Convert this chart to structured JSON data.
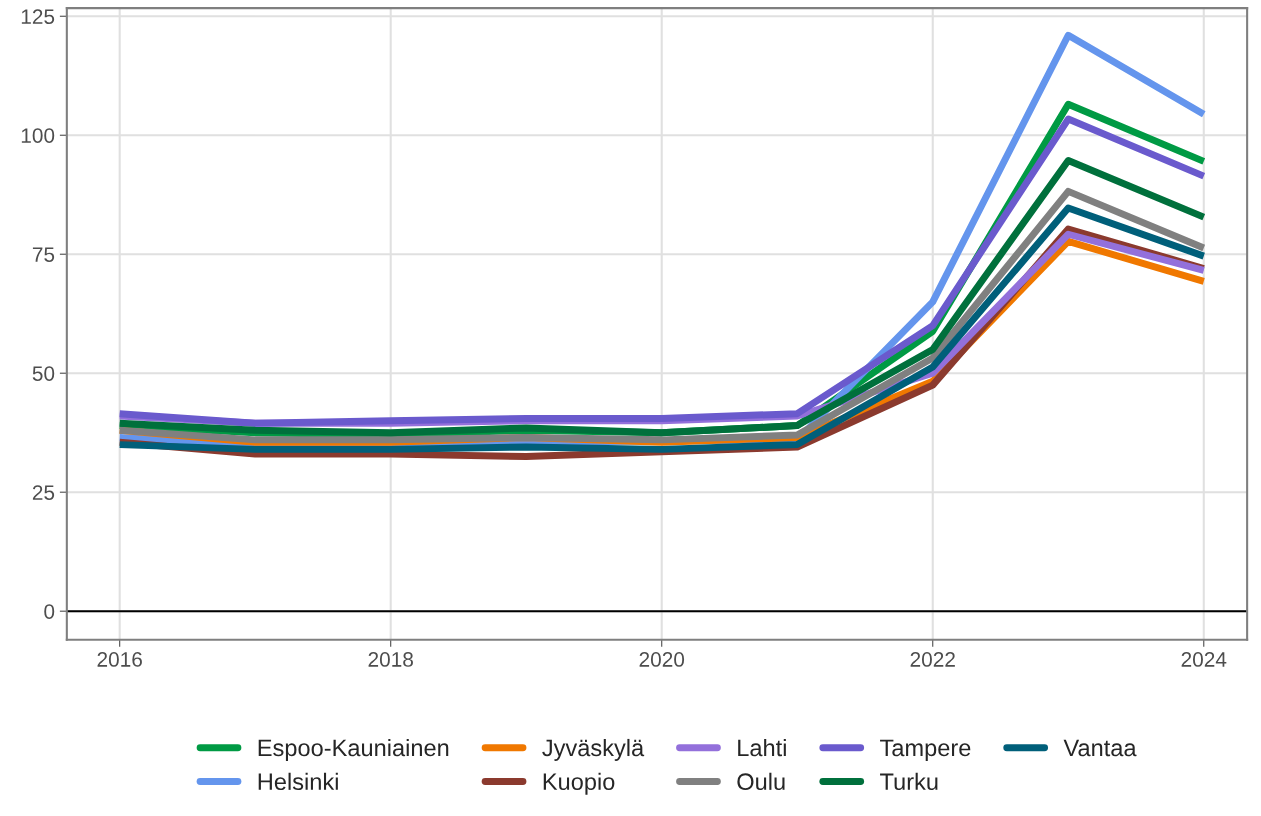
{
  "chart_data": {
    "type": "line",
    "x": [
      2016,
      2017,
      2018,
      2019,
      2020,
      2021,
      2022,
      2023,
      2024
    ],
    "series": [
      {
        "name": "Espoo-Kauniainen",
        "color": "#009a44",
        "values": [
          39,
          37.5,
          37,
          38,
          37.5,
          39,
          58.8,
          106.5,
          94.5
        ]
      },
      {
        "name": "Helsinki",
        "color": "#6495ed",
        "values": [
          36.5,
          35,
          null,
          35.5,
          null,
          36,
          65,
          121,
          104.4
        ]
      },
      {
        "name": "Jyväskylä",
        "color": "#f07800",
        "values": [
          38,
          35.5,
          35.5,
          36.5,
          35.5,
          36.5,
          48.3,
          77.7,
          69.3
        ]
      },
      {
        "name": "Kuopio",
        "color": "#8b3a2e",
        "values": [
          35.5,
          33,
          33,
          32.5,
          33.5,
          34.5,
          47.5,
          80.3,
          72
        ]
      },
      {
        "name": "Lahti",
        "color": "#9370db",
        "values": [
          41,
          39.5,
          39.5,
          40,
          40,
          41,
          50,
          79.2,
          71.6
        ]
      },
      {
        "name": "Oulu",
        "color": "#808080",
        "values": [
          38,
          36,
          36,
          36.5,
          36,
          37,
          53.2,
          88.2,
          76.3
        ]
      },
      {
        "name": "Tampere",
        "color": "#6a5acd",
        "values": [
          41.5,
          39.5,
          40,
          40.5,
          40.5,
          41.5,
          60,
          103.4,
          91.4
        ]
      },
      {
        "name": "Turku",
        "color": "#00703c",
        "values": [
          39.5,
          38,
          37.5,
          38.5,
          37.5,
          39,
          55,
          94.7,
          82.8
        ]
      },
      {
        "name": "Vantaa",
        "color": "#005f7a",
        "values": [
          35,
          34,
          34,
          34.5,
          34,
          35,
          51.3,
          84.7,
          74.6
        ]
      }
    ],
    "xlim": [
      2015.61,
      2024.32
    ],
    "xticks": [
      2016,
      2018,
      2020,
      2022,
      2024
    ],
    "ylim": [
      -6,
      126.7
    ],
    "yticks": [
      0,
      25,
      50,
      75,
      100,
      125
    ],
    "ref_lines": [
      {
        "axis": "y",
        "value": 0,
        "color": "#000000"
      }
    ],
    "grid": true,
    "legend": "bottom",
    "line_style": "solid",
    "marker": "none"
  }
}
